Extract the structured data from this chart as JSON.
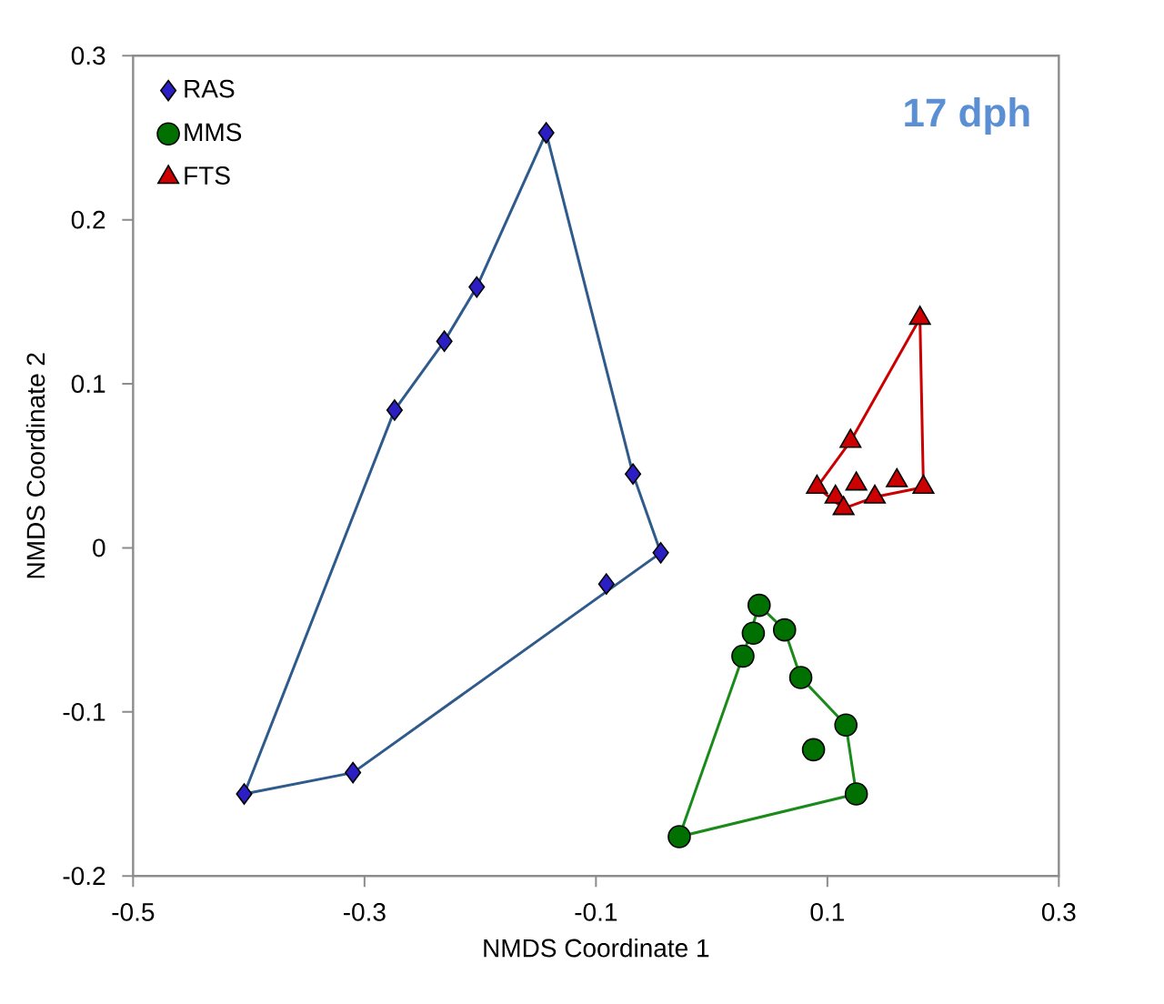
{
  "chart_data": {
    "type": "scatter",
    "title": "17 dph",
    "xlabel": "NMDS Coordinate 1",
    "ylabel": "NMDS Coordinate 2",
    "xlim": [
      -0.5,
      0.3
    ],
    "xticks": [
      -0.5,
      -0.3,
      -0.1,
      0.1,
      0.3
    ],
    "ylim": [
      -0.2,
      0.3
    ],
    "yticks": [
      -0.2,
      -0.1,
      0,
      0.1,
      0.2,
      0.3
    ],
    "grid": false,
    "legend": "top left",
    "series": [
      {
        "name": "RAS",
        "marker": "diamond",
        "color": "#2b1fc4",
        "x": [
          -0.143,
          -0.203,
          -0.231,
          -0.274,
          -0.068,
          -0.044,
          -0.091,
          -0.404,
          -0.31
        ],
        "values": [
          0.253,
          0.159,
          0.126,
          0.084,
          0.045,
          -0.003,
          -0.022,
          -0.15,
          -0.137
        ]
      },
      {
        "name": "MMS",
        "marker": "circle",
        "color": "#007000",
        "x": [
          0.041,
          0.036,
          0.027,
          0.063,
          0.077,
          0.116,
          0.088,
          0.125,
          -0.028
        ],
        "values": [
          -0.035,
          -0.052,
          -0.066,
          -0.05,
          -0.079,
          -0.108,
          -0.123,
          -0.15,
          -0.176
        ]
      },
      {
        "name": "FTS",
        "marker": "triangle",
        "color": "#cc0000",
        "x": [
          0.18,
          0.12,
          0.091,
          0.107,
          0.125,
          0.114,
          0.141,
          0.16,
          0.183
        ],
        "values": [
          0.14,
          0.065,
          0.037,
          0.031,
          0.039,
          0.024,
          0.031,
          0.041,
          0.037
        ]
      },
      {
        "type": "line",
        "marker": "none",
        "color": "#2e5a8c",
        "x": [
          -0.404,
          -0.274,
          -0.231,
          -0.203,
          -0.143,
          -0.068,
          -0.044
        ],
        "values": [
          -0.15,
          0.084,
          0.126,
          0.159,
          0.253,
          0.045,
          -0.003
        ]
      },
      {
        "type": "line",
        "marker": "none",
        "color": "#2e5a8c",
        "x": [
          -0.404,
          -0.31,
          -0.044
        ],
        "values": [
          -0.15,
          -0.137,
          -0.003
        ]
      },
      {
        "type": "line",
        "marker": "none",
        "color": "#1a8a1a",
        "x": [
          -0.028,
          0.027,
          0.041,
          0.063,
          0.077,
          0.116,
          0.125
        ],
        "values": [
          -0.176,
          -0.066,
          -0.035,
          -0.05,
          -0.079,
          -0.108,
          -0.15
        ]
      },
      {
        "type": "line",
        "marker": "none",
        "color": "#1a8a1a",
        "x": [
          -0.028,
          0.125
        ],
        "values": [
          -0.176,
          -0.15
        ]
      },
      {
        "type": "line",
        "marker": "none",
        "color": "#cc0000",
        "x": [
          0.091,
          0.12,
          0.18,
          0.183
        ],
        "values": [
          0.037,
          0.065,
          0.14,
          0.037
        ]
      },
      {
        "type": "line",
        "marker": "none",
        "color": "#cc0000",
        "x": [
          0.091,
          0.114,
          0.141,
          0.183
        ],
        "values": [
          0.037,
          0.024,
          0.031,
          0.037
        ]
      }
    ]
  }
}
